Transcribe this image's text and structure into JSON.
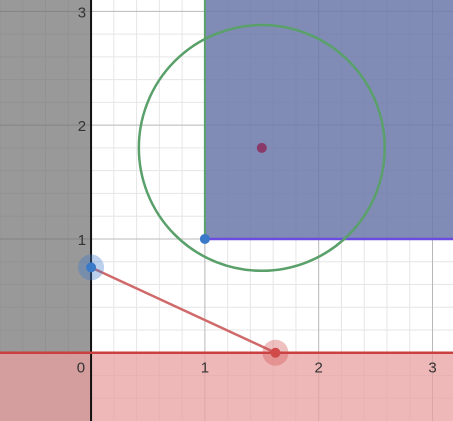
{
  "graph": {
    "x_range": [
      -0.8,
      3.18
    ],
    "y_range": [
      -0.6,
      3.1
    ],
    "major_step": 1,
    "minor_step": 0.2,
    "tick_labels_x": [
      "0",
      "1",
      "2",
      "3"
    ],
    "tick_labels_y": [
      "1",
      "2",
      "3"
    ]
  },
  "colors": {
    "gray_region": "#6e6e6e",
    "blue_region": "#6a78a8",
    "blue_edge": "#6c4ce0",
    "green": "#5aa06a",
    "red": "#c84040",
    "red_fill": "#e8a0a0",
    "point_blue": "#3a78c8",
    "point_red": "#d04a4a",
    "point_purple": "#8a3a6a"
  },
  "shapes": {
    "gray_half_plane": {
      "x_max": 0
    },
    "blue_region": {
      "x_min": 1,
      "y_min": 1
    },
    "red_half_plane": {
      "y_max": 0
    },
    "circle": {
      "cx": 1.5,
      "cy": 1.8,
      "r": 1.08
    },
    "segment": {
      "from": [
        0,
        0.75
      ],
      "to": [
        1.62,
        0
      ]
    }
  },
  "points": [
    {
      "name": "corner",
      "x": 1,
      "y": 1,
      "color": "point_blue"
    },
    {
      "name": "center",
      "x": 1.5,
      "y": 1.8,
      "color": "point_purple"
    },
    {
      "name": "draggable-a",
      "x": 0,
      "y": 0.75,
      "color": "point_blue",
      "halo": true
    },
    {
      "name": "draggable-b",
      "x": 1.62,
      "y": 0,
      "color": "point_red",
      "halo": true
    }
  ]
}
